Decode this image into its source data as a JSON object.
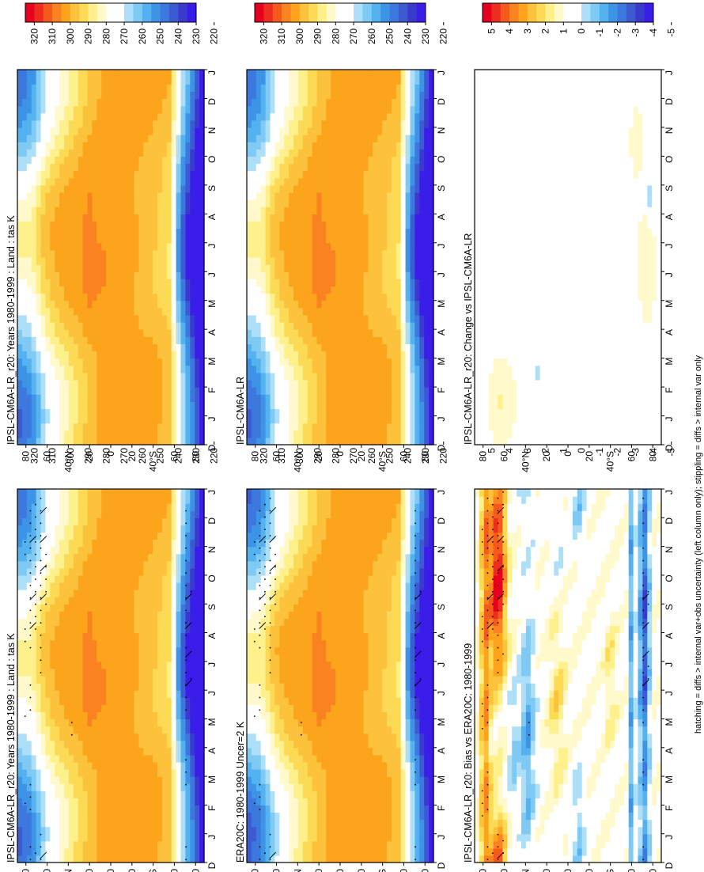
{
  "figure": {
    "footnote": "hatching = diffs > internal var+obs uncertainty (left column only); stippling = diffs > internal var only",
    "months": [
      "D",
      "J",
      "F",
      "M",
      "A",
      "M",
      "J",
      "J",
      "A",
      "S",
      "O",
      "N",
      "D",
      "J"
    ],
    "lat_ticks": [
      "80",
      "60",
      "40°N",
      "20",
      "0",
      "20",
      "40°S",
      "60",
      "80"
    ],
    "lat_values": [
      80,
      60,
      40,
      20,
      0,
      -20,
      -40,
      -60,
      -80
    ]
  },
  "palettes": {
    "temperature": [
      "#e6001e",
      "#ec2d1f",
      "#f45a1c",
      "#fa8220",
      "#fba41c",
      "#fdc23c",
      "#fdda55",
      "#fef08b",
      "#fff9cc",
      "#ffffff",
      "#ffffff",
      "#aedff9",
      "#7fcaf4",
      "#53b2ef",
      "#3d93e6",
      "#3c78dd",
      "#3c5bd2",
      "#3a3bcc",
      "#3a1de8"
    ],
    "difference": [
      "#e6001e",
      "#ec2d1f",
      "#f45a1c",
      "#fa8220",
      "#fba41c",
      "#fdc23c",
      "#fdda55",
      "#fef08b",
      "#fff9cc",
      "#ffffff",
      "#ffffff",
      "#aedff9",
      "#7fcaf4",
      "#53b2ef",
      "#3d93e6",
      "#3c78dd",
      "#3c5bd2",
      "#3a3bcc",
      "#3a1de8"
    ]
  },
  "colorbars": {
    "temperature": [
      "320",
      "310",
      "300",
      "290",
      "280",
      "270",
      "260",
      "250",
      "240",
      "230",
      "220"
    ],
    "difference": [
      "5",
      "4",
      "3",
      "2",
      "1",
      "0",
      "-1",
      "-2",
      "-3",
      "-4",
      "-5"
    ]
  },
  "chart_data": [
    {
      "type": "heatmap",
      "title": "IPSL-CM6A-LR_r20: Years 1980-1999 : Land : tas K",
      "x": [
        "D",
        "J",
        "F",
        "M",
        "A",
        "M",
        "J",
        "J",
        "A",
        "S",
        "O",
        "N",
        "D",
        "J"
      ],
      "y": [
        80,
        60,
        40,
        20,
        0,
        -20,
        -40,
        -60,
        -80
      ],
      "y_ticks": [
        "80",
        "60",
        "40°N",
        "20",
        "0",
        "20",
        "40°S",
        "60",
        "80"
      ],
      "colorbar": [
        "320",
        "310",
        "300",
        "290",
        "280",
        "270",
        "260",
        "250",
        "240",
        "230",
        "220"
      ],
      "value_range": [
        215,
        325
      ],
      "field": "model_tas",
      "hatching": true,
      "stippling": true
    },
    {
      "type": "heatmap",
      "title": "IPSL-CM6A-LR_r20: Years 1980-1999 : Land : tas K",
      "x": [
        "D",
        "J",
        "F",
        "M",
        "A",
        "M",
        "J",
        "J",
        "A",
        "S",
        "O",
        "N",
        "D",
        "J"
      ],
      "y": [
        80,
        60,
        40,
        20,
        0,
        -20,
        -40,
        -60,
        -80
      ],
      "y_ticks": [
        "80",
        "60",
        "40°N",
        "20",
        "0",
        "20",
        "40°S",
        "60",
        "80"
      ],
      "colorbar": [
        "320",
        "310",
        "300",
        "290",
        "280",
        "270",
        "260",
        "250",
        "240",
        "230",
        "220"
      ],
      "value_range": [
        215,
        325
      ],
      "field": "model_tas",
      "hatching": false,
      "stippling": false
    },
    {
      "type": "heatmap",
      "title": "ERA20C: 1980-1999 Uncer=2 K",
      "x": [
        "D",
        "J",
        "F",
        "M",
        "A",
        "M",
        "J",
        "J",
        "A",
        "S",
        "O",
        "N",
        "D",
        "J"
      ],
      "y": [
        80,
        60,
        40,
        20,
        0,
        -20,
        -40,
        -60,
        -80
      ],
      "y_ticks": [
        "80",
        "60",
        "40°N",
        "20",
        "0",
        "20",
        "40°S",
        "60",
        "80"
      ],
      "colorbar": [
        "320",
        "310",
        "300",
        "290",
        "280",
        "270",
        "260",
        "250",
        "240",
        "230",
        "220"
      ],
      "value_range": [
        215,
        325
      ],
      "field": "obs_tas",
      "hatching": true,
      "stippling": true
    },
    {
      "type": "heatmap",
      "title": "IPSL-CM6A-LR",
      "x": [
        "D",
        "J",
        "F",
        "M",
        "A",
        "M",
        "J",
        "J",
        "A",
        "S",
        "O",
        "N",
        "D",
        "J"
      ],
      "y": [
        80,
        60,
        40,
        20,
        0,
        -20,
        -40,
        -60,
        -80
      ],
      "y_ticks": [
        "80",
        "60",
        "40°N",
        "20",
        "0",
        "20",
        "40°S",
        "60",
        "80"
      ],
      "colorbar": [
        "320",
        "310",
        "300",
        "290",
        "280",
        "270",
        "260",
        "250",
        "240",
        "230",
        "220"
      ],
      "value_range": [
        215,
        325
      ],
      "field": "model_tas",
      "hatching": false,
      "stippling": false
    },
    {
      "type": "heatmap",
      "title": "IPSL-CM6A-LR_r20: Bias vs ERA20C: 1980-1999",
      "x": [
        "D",
        "J",
        "F",
        "M",
        "A",
        "M",
        "J",
        "J",
        "A",
        "S",
        "O",
        "N",
        "D",
        "J"
      ],
      "y": [
        80,
        60,
        40,
        20,
        0,
        -20,
        -40,
        -60,
        -80
      ],
      "y_ticks": [
        "80",
        "60",
        "40°N",
        "20",
        "0",
        "20",
        "40°S",
        "60",
        "80"
      ],
      "colorbar": [
        "5",
        "4",
        "3",
        "2",
        "1",
        "0",
        "-1",
        "-2",
        "-3",
        "-4",
        "-5"
      ],
      "value_range": [
        -5.5,
        5.5
      ],
      "field": "bias",
      "hatching": true,
      "stippling": true
    },
    {
      "type": "heatmap",
      "title": "IPSL-CM6A-LR_r20: Change vs IPSL-CM6A-LR",
      "x": [
        "D",
        "J",
        "F",
        "M",
        "A",
        "M",
        "J",
        "J",
        "A",
        "S",
        "O",
        "N",
        "D",
        "J"
      ],
      "y": [
        80,
        60,
        40,
        20,
        0,
        -20,
        -40,
        -60,
        -80
      ],
      "y_ticks": [
        "80",
        "60",
        "40°N",
        "20",
        "0",
        "20",
        "40°S",
        "60",
        "80"
      ],
      "colorbar": [
        "5",
        "4",
        "3",
        "2",
        "1",
        "0",
        "-1",
        "-2",
        "-3",
        "-4",
        "-5"
      ],
      "value_range": [
        -5.5,
        5.5
      ],
      "field": "change",
      "hatching": false,
      "stippling": false
    }
  ]
}
